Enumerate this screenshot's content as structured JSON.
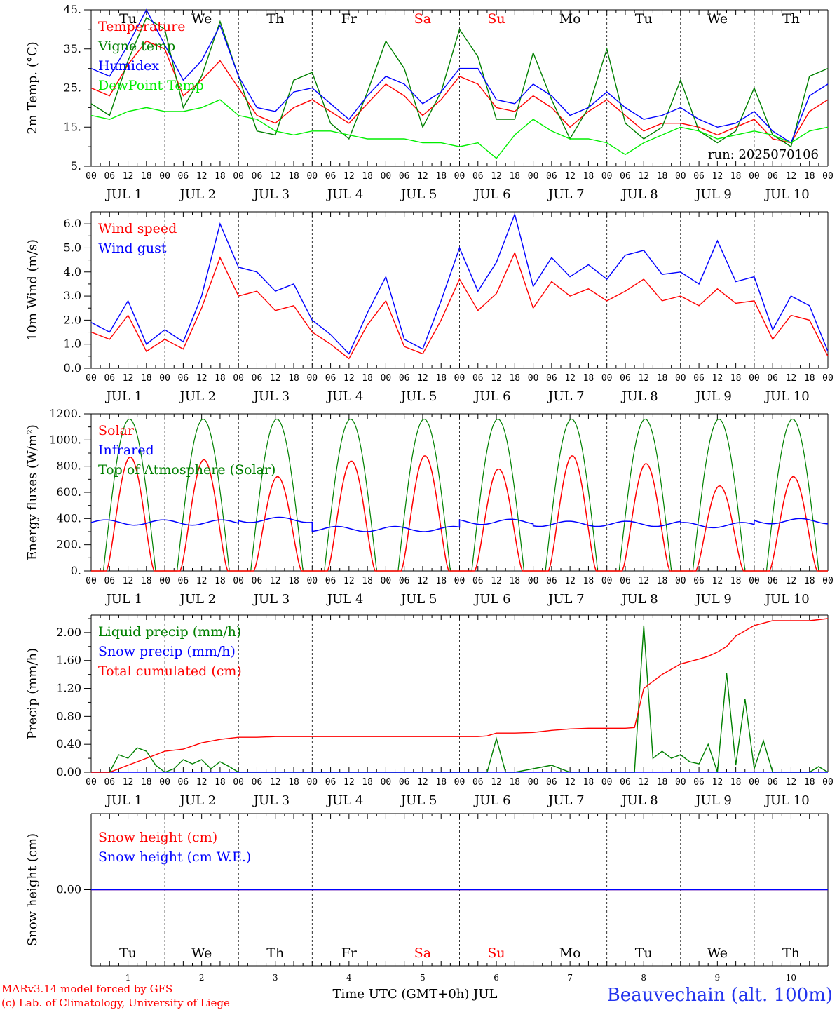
{
  "days": [
    "1",
    "2",
    "3",
    "4",
    "5",
    "6",
    "7",
    "8",
    "9",
    "10"
  ],
  "weekdays": [
    "Tu",
    "We",
    "Th",
    "Fr",
    "Sa",
    "Su",
    "Mo",
    "Tu",
    "We",
    "Th"
  ],
  "weekend_days": [
    4,
    5
  ],
  "month": "JUL",
  "hour_ticks": [
    "00",
    "06",
    "12",
    "18"
  ],
  "hour_end": "00",
  "run_label": "run: 2025070106",
  "x_title": "Time UTC (GMT+0h) JUL",
  "footer": {
    "model": "MARv3.14 model forced by GFS",
    "copyright": "(c) Lab. of Climatology, University of Liege",
    "station": "Beauvechain (alt. 100m)"
  },
  "colors": {
    "red": "#ff0000",
    "blue": "#0000ff",
    "green": "#008000",
    "lime": "#00ee00",
    "station": "#2233ee"
  },
  "chart_data": [
    {
      "type": "line",
      "ylabel": "2m Temp. (°C)",
      "ylim": [
        5,
        45
      ],
      "ticks": [
        "5.",
        "15.",
        "25.",
        "35.",
        "45."
      ],
      "tick_values": [
        5,
        15,
        25,
        35,
        45
      ],
      "series": [
        {
          "name": "Temperature",
          "color": "red",
          "x_hours": [
            0,
            6,
            12,
            18,
            24,
            30,
            36,
            42,
            48,
            54,
            60,
            66,
            72,
            78,
            84,
            90,
            96,
            102,
            108,
            114,
            120,
            126,
            132,
            138,
            144,
            150,
            156,
            162,
            168,
            174,
            180,
            186,
            192,
            198,
            204,
            210,
            216,
            222,
            228,
            234,
            240
          ],
          "values": [
            25,
            23,
            31,
            37,
            35,
            23,
            27,
            32,
            25,
            18,
            16,
            20,
            22,
            19,
            16,
            21,
            26,
            23,
            18,
            22,
            28,
            26,
            20,
            19,
            23,
            20,
            15,
            19,
            22,
            18,
            14,
            16,
            16,
            15,
            13,
            15,
            17,
            12,
            11,
            19,
            22
          ]
        },
        {
          "name": "Vigne temp",
          "color": "green",
          "x_hours": [
            0,
            6,
            12,
            18,
            24,
            30,
            36,
            42,
            48,
            54,
            60,
            66,
            72,
            78,
            84,
            90,
            96,
            102,
            108,
            114,
            120,
            126,
            132,
            138,
            144,
            150,
            156,
            162,
            168,
            174,
            180,
            186,
            192,
            198,
            204,
            210,
            216,
            222,
            228,
            234,
            240
          ],
          "values": [
            21,
            18,
            32,
            43,
            40,
            20,
            28,
            42,
            28,
            14,
            13,
            27,
            29,
            16,
            12,
            24,
            37,
            30,
            15,
            24,
            40,
            33,
            17,
            17,
            34,
            22,
            12,
            20,
            35,
            16,
            12,
            15,
            27,
            14,
            11,
            14,
            25,
            13,
            10,
            28,
            30
          ]
        },
        {
          "name": "Humidex",
          "color": "blue",
          "x_hours": [
            0,
            6,
            12,
            18,
            24,
            30,
            36,
            42,
            48,
            54,
            60,
            66,
            72,
            78,
            84,
            90,
            96,
            102,
            108,
            114,
            120,
            126,
            132,
            138,
            144,
            150,
            156,
            162,
            168,
            174,
            180,
            186,
            192,
            198,
            204,
            210,
            216,
            222,
            228,
            234,
            240
          ],
          "values": [
            30,
            28,
            36,
            45,
            36,
            27,
            32,
            41,
            28,
            20,
            19,
            24,
            25,
            21,
            17,
            23,
            28,
            26,
            21,
            24,
            30,
            30,
            22,
            21,
            26,
            23,
            18,
            20,
            24,
            20,
            17,
            18,
            20,
            17,
            15,
            16,
            19,
            14,
            11,
            23,
            26
          ]
        },
        {
          "name": "DewPoint Temp",
          "color": "lime",
          "x_hours": [
            0,
            6,
            12,
            18,
            24,
            30,
            36,
            42,
            48,
            54,
            60,
            66,
            72,
            78,
            84,
            90,
            96,
            102,
            108,
            114,
            120,
            126,
            132,
            138,
            144,
            150,
            156,
            162,
            168,
            174,
            180,
            186,
            192,
            198,
            204,
            210,
            216,
            222,
            228,
            234,
            240
          ],
          "values": [
            18,
            17,
            19,
            20,
            19,
            19,
            20,
            22,
            18,
            17,
            14,
            13,
            14,
            14,
            13,
            12,
            12,
            12,
            11,
            11,
            10,
            11,
            7,
            13,
            17,
            14,
            12,
            12,
            11,
            8,
            11,
            13,
            15,
            14,
            12,
            13,
            14,
            13,
            11,
            14,
            15
          ]
        }
      ]
    },
    {
      "type": "line",
      "ylabel": "10m Wind (m/s)",
      "ylim": [
        0,
        6.5
      ],
      "ticks": [
        "0.0",
        "1.0",
        "2.0",
        "3.0",
        "4.0",
        "5.0",
        "6.0"
      ],
      "tick_values": [
        0,
        1,
        2,
        3,
        4,
        5,
        6
      ],
      "reference_line": 5.0,
      "series": [
        {
          "name": "Wind speed",
          "color": "red",
          "x_hours": [
            0,
            6,
            12,
            18,
            24,
            30,
            36,
            42,
            48,
            54,
            60,
            66,
            72,
            78,
            84,
            90,
            96,
            102,
            108,
            114,
            120,
            126,
            132,
            138,
            144,
            150,
            156,
            162,
            168,
            174,
            180,
            186,
            192,
            198,
            204,
            210,
            216,
            222,
            228,
            234,
            240
          ],
          "values": [
            1.5,
            1.2,
            2.2,
            0.7,
            1.2,
            0.8,
            2.5,
            4.6,
            3.0,
            3.2,
            2.4,
            2.6,
            1.5,
            1.0,
            0.4,
            1.8,
            2.8,
            0.9,
            0.6,
            2.0,
            3.7,
            2.4,
            3.1,
            4.8,
            2.5,
            3.6,
            3.0,
            3.3,
            2.8,
            3.2,
            3.7,
            2.8,
            3.0,
            2.6,
            3.3,
            2.7,
            2.8,
            1.2,
            2.2,
            2.0,
            0.5
          ]
        },
        {
          "name": "Wind gust",
          "color": "blue",
          "x_hours": [
            0,
            6,
            12,
            18,
            24,
            30,
            36,
            42,
            48,
            54,
            60,
            66,
            72,
            78,
            84,
            90,
            96,
            102,
            108,
            114,
            120,
            126,
            132,
            138,
            144,
            150,
            156,
            162,
            168,
            174,
            180,
            186,
            192,
            198,
            204,
            210,
            216,
            222,
            228,
            234,
            240
          ],
          "values": [
            1.9,
            1.5,
            2.8,
            1.0,
            1.6,
            1.1,
            3.0,
            6.0,
            4.2,
            4.0,
            3.2,
            3.5,
            2.0,
            1.4,
            0.6,
            2.3,
            3.8,
            1.2,
            0.8,
            2.8,
            5.0,
            3.2,
            4.4,
            6.4,
            3.4,
            4.6,
            3.8,
            4.3,
            3.7,
            4.7,
            4.9,
            3.9,
            4.0,
            3.5,
            5.3,
            3.6,
            3.8,
            1.6,
            3.0,
            2.6,
            0.7
          ]
        }
      ]
    },
    {
      "type": "line",
      "ylabel": "Energy fluxes (W/m²)",
      "ylim": [
        0,
        1200
      ],
      "ticks": [
        "0.",
        "200.",
        "400.",
        "600.",
        "800.",
        "1000.",
        "1200."
      ],
      "tick_values": [
        0,
        200,
        400,
        600,
        800,
        1000,
        1200
      ],
      "toa_peak": 1160,
      "solar_daily_peak": [
        870,
        850,
        720,
        840,
        880,
        780,
        880,
        820,
        650,
        720
      ],
      "infrared_daily": [
        370,
        370,
        390,
        320,
        320,
        375,
        360,
        360,
        350,
        380
      ],
      "series": [
        {
          "name": "Solar",
          "color": "red"
        },
        {
          "name": "Infrared",
          "color": "blue"
        },
        {
          "name": "Top of Atmosphere (Solar)",
          "color": "green"
        }
      ]
    },
    {
      "type": "line",
      "ylabel": "Precip (mm/h)",
      "ylim": [
        0,
        2.25
      ],
      "ticks": [
        "0.00",
        "0.40",
        "0.80",
        "1.20",
        "1.60",
        "2.00"
      ],
      "tick_values": [
        0,
        0.4,
        0.8,
        1.2,
        1.6,
        2.0
      ],
      "series": [
        {
          "name": "Liquid precip (mm/h)",
          "color": "green",
          "x_hours": [
            0,
            6,
            9,
            12,
            15,
            18,
            21,
            24,
            27,
            30,
            33,
            36,
            39,
            42,
            45,
            48,
            54,
            120,
            129,
            132,
            135,
            138,
            150,
            156,
            162,
            168,
            174,
            177,
            180,
            183,
            186,
            189,
            192,
            195,
            198,
            201,
            204,
            207,
            210,
            213,
            216,
            219,
            222,
            228,
            234,
            237,
            240
          ],
          "values": [
            0,
            0,
            0.25,
            0.2,
            0.35,
            0.3,
            0.1,
            0,
            0.05,
            0.18,
            0.12,
            0.18,
            0.05,
            0.15,
            0.08,
            0,
            0,
            0,
            0,
            0.48,
            0,
            0,
            0.1,
            0,
            0,
            0,
            0,
            0,
            2.1,
            0.2,
            0.3,
            0.2,
            0.25,
            0.15,
            0.12,
            0.4,
            0,
            1.42,
            0.1,
            1.05,
            0.05,
            0.45,
            0,
            0,
            0,
            0.08,
            0
          ]
        },
        {
          "name": "Snow precip (mm/h)",
          "color": "blue",
          "x_hours": [
            0,
            240
          ],
          "values": [
            0,
            0
          ]
        },
        {
          "name": "Total cumulated (cm)",
          "color": "red",
          "x_hours": [
            0,
            6,
            12,
            18,
            24,
            30,
            36,
            42,
            48,
            54,
            60,
            72,
            96,
            120,
            126,
            129,
            132,
            138,
            144,
            150,
            156,
            162,
            168,
            174,
            177,
            180,
            186,
            192,
            198,
            201,
            204,
            207,
            210,
            216,
            222,
            228,
            234,
            240
          ],
          "values": [
            0,
            0,
            0.1,
            0.2,
            0.3,
            0.33,
            0.42,
            0.47,
            0.5,
            0.5,
            0.51,
            0.51,
            0.51,
            0.51,
            0.51,
            0.52,
            0.56,
            0.56,
            0.57,
            0.6,
            0.62,
            0.63,
            0.63,
            0.63,
            0.64,
            1.2,
            1.4,
            1.55,
            1.62,
            1.66,
            1.72,
            1.8,
            1.95,
            2.1,
            2.17,
            2.17,
            2.17,
            2.2
          ]
        }
      ]
    },
    {
      "type": "line",
      "ylabel": "Snow height (cm)",
      "ylim": [
        -1,
        1
      ],
      "ticks": [
        "0.00"
      ],
      "tick_values": [
        0
      ],
      "series": [
        {
          "name": "Snow height (cm)",
          "color": "red",
          "x_hours": [
            0,
            240
          ],
          "values": [
            0,
            0
          ]
        },
        {
          "name": "Snow height (cm W.E.)",
          "color": "blue",
          "x_hours": [
            0,
            240
          ],
          "values": [
            0,
            0
          ]
        }
      ]
    }
  ]
}
